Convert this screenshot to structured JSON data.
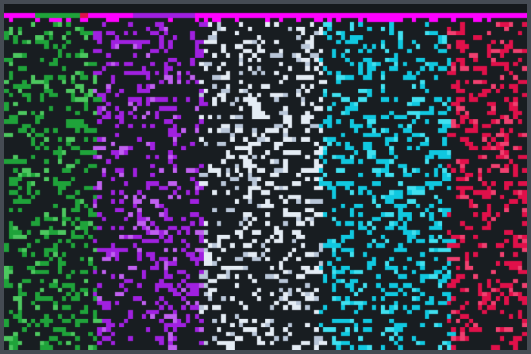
{
  "game": {
    "background": "#181d21",
    "border": "#454b53",
    "cell_size_px_note_free": true,
    "bands": [
      {
        "color": "#1fa33a",
        "alt": "#4cc75f"
      },
      {
        "color": "#a020e0",
        "alt": "#c060f0"
      },
      {
        "color": "#e4ecf4",
        "alt": "#b8c6d8"
      },
      {
        "color": "#10c8e0",
        "alt": "#40e0f0"
      },
      {
        "color": "#e0104a",
        "alt": "#f04070"
      }
    ],
    "sweep_line_color": "#ff00ff"
  }
}
